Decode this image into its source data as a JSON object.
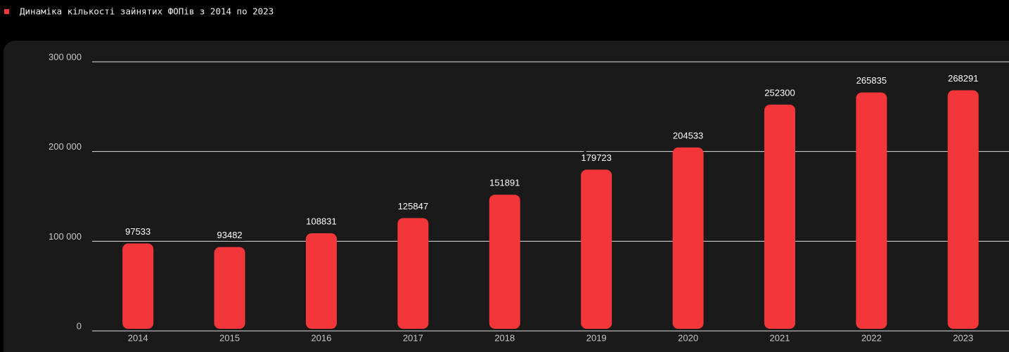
{
  "chart_data": {
    "type": "bar",
    "title": "Динаміка кількості зайнятих ФОПів з 2014 по 2023",
    "categories": [
      "2014",
      "2015",
      "2016",
      "2017",
      "2018",
      "2019",
      "2020",
      "2021",
      "2022",
      "2023"
    ],
    "values": [
      97533,
      93482,
      108831,
      125847,
      151891,
      179723,
      204533,
      252300,
      265835,
      268291
    ],
    "color": "#f3363a",
    "ylim": [
      0,
      300000
    ],
    "yticks": [
      0,
      {
        "value": 100000,
        "label": "100 000"
      },
      {
        "value": 200000,
        "label": "200 000"
      },
      {
        "value": 300000,
        "label": "300 000"
      }
    ],
    "grid": true
  }
}
